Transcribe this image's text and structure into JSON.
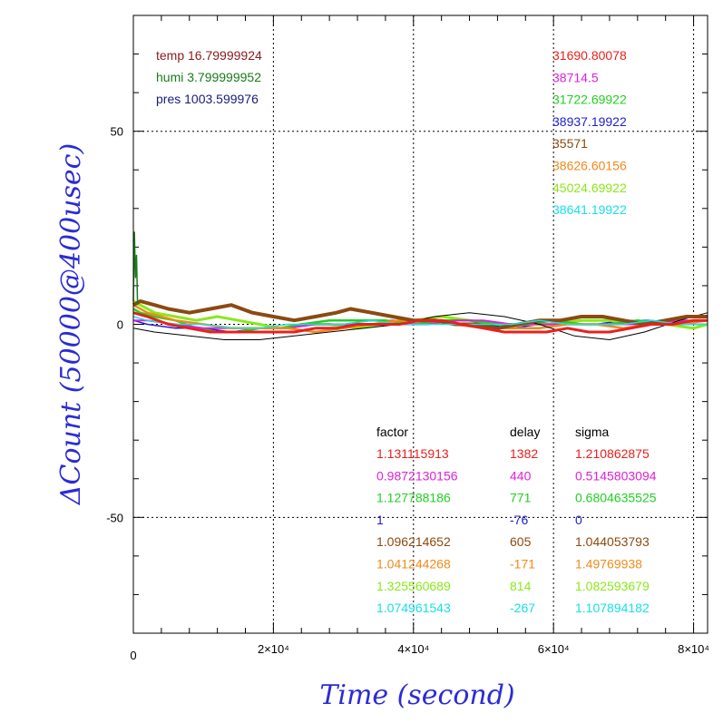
{
  "chart_data": {
    "type": "line",
    "xlabel": "Time (second)",
    "ylabel": "ΔCount (50000@400usec)",
    "xlim": [
      0,
      82000
    ],
    "ylim": [
      -80,
      80
    ],
    "x_ticks": [
      {
        "value": 0,
        "label": "0"
      },
      {
        "value": 20000,
        "label": "2×10⁴"
      },
      {
        "value": 40000,
        "label": "4×10⁴"
      },
      {
        "value": 60000,
        "label": "6×10⁴"
      },
      {
        "value": 80000,
        "label": "8×10⁴"
      }
    ],
    "y_ticks": [
      {
        "value": 50,
        "label": "50"
      },
      {
        "value": 0,
        "label": "0"
      },
      {
        "value": -50,
        "label": "-50"
      }
    ],
    "grid": true,
    "env": [
      {
        "text": "temp 16.79999924",
        "color": "#8b1a1a"
      },
      {
        "text": "humi 3.799999952",
        "color": "#1a7a1a"
      },
      {
        "text": "pres 1003.599976",
        "color": "#1a1a7a"
      }
    ],
    "legend_values": [
      {
        "text": "31690.80078",
        "color": "#e8201e"
      },
      {
        "text": "38714.5",
        "color": "#e020d8"
      },
      {
        "text": "31722.69922",
        "color": "#22d022"
      },
      {
        "text": "38937.19922",
        "color": "#2020d0"
      },
      {
        "text": "35571",
        "color": "#8b4a10"
      },
      {
        "text": "38626.60156",
        "color": "#f08a1a"
      },
      {
        "text": "45024.69922",
        "color": "#8ae81a"
      },
      {
        "text": "38641.19922",
        "color": "#18e0e8"
      }
    ],
    "fit_table": {
      "headers": [
        "factor",
        "delay",
        "sigma"
      ],
      "rows": [
        {
          "factor": "1.131115913",
          "delay": "1382",
          "sigma": "1.210862875",
          "color": "#e8201e"
        },
        {
          "factor": "0.9872130156",
          "delay": "440",
          "sigma": "0.5145803094",
          "color": "#e020d8"
        },
        {
          "factor": "1.127788186",
          "delay": "771",
          "sigma": "0.6804635525",
          "color": "#22d022"
        },
        {
          "factor": "1",
          "delay": "-76",
          "sigma": "0",
          "color": "#2020d0"
        },
        {
          "factor": "1.096214652",
          "delay": "605",
          "sigma": "1.044053793",
          "color": "#8b4a10"
        },
        {
          "factor": "1.041244268",
          "delay": "-171",
          "sigma": "1.49769938",
          "color": "#f08a1a"
        },
        {
          "factor": "1.325560689",
          "delay": "814",
          "sigma": "1.082593679",
          "color": "#8ae81a"
        },
        {
          "factor": "1.074961543",
          "delay": "-267",
          "sigma": "1.107894182",
          "color": "#18e0e8"
        }
      ]
    },
    "series": [
      {
        "color": "#2020d0",
        "width": 1.5,
        "x": [
          0,
          2000,
          6000,
          10000,
          14000,
          18000,
          22000,
          26000,
          30000,
          34000,
          38000,
          42000,
          46000,
          50000,
          54000,
          58000,
          62000,
          66000,
          70000,
          74000,
          78000,
          82000
        ],
        "y": [
          1,
          0,
          -1,
          -1,
          -2,
          -1,
          -1,
          0,
          0,
          1,
          1,
          1,
          0,
          0,
          -1,
          0,
          0,
          0,
          1,
          1,
          0,
          0
        ]
      },
      {
        "color": "#8ae81a",
        "width": 3,
        "x": [
          0,
          1000,
          3000,
          6000,
          9000,
          12000,
          15000,
          18000,
          21000,
          24000,
          28000,
          32000,
          36000,
          40000,
          44000,
          48000,
          52000,
          56000,
          60000,
          64000,
          68000,
          72000,
          76000,
          80000,
          82000
        ],
        "y": [
          6,
          5,
          3,
          2,
          1,
          2,
          1,
          0,
          -1,
          0,
          0,
          -1,
          0,
          1,
          2,
          1,
          0,
          0,
          0,
          1,
          1,
          0,
          0,
          -1,
          0
        ]
      },
      {
        "color": "#22d022",
        "width": 2.5,
        "x": [
          0,
          1000,
          3000,
          6000,
          9000,
          12000,
          15000,
          18000,
          21000,
          24000,
          28000,
          32000,
          36000,
          40000,
          44000,
          48000,
          52000,
          56000,
          60000,
          64000,
          68000,
          72000,
          76000,
          80000,
          82000
        ],
        "y": [
          4,
          3,
          2,
          1,
          -1,
          -2,
          -2,
          -1,
          -1,
          0,
          1,
          1,
          1,
          0,
          1,
          1,
          0,
          0,
          1,
          0,
          0,
          1,
          0,
          1,
          1
        ]
      },
      {
        "color": "#e020d8",
        "width": 2,
        "x": [
          0,
          2000,
          6000,
          10000,
          14000,
          18000,
          22000,
          26000,
          30000,
          34000,
          38000,
          42000,
          46000,
          50000,
          54000,
          58000,
          62000,
          66000,
          70000,
          74000,
          78000,
          82000
        ],
        "y": [
          1,
          1,
          0,
          -1,
          -1,
          -1,
          -1,
          0,
          0,
          0,
          0,
          0,
          1,
          1,
          0,
          0,
          0,
          0,
          0,
          0,
          1,
          1
        ]
      },
      {
        "color": "#f08a1a",
        "width": 2.5,
        "x": [
          0,
          2000,
          6000,
          10000,
          14000,
          18000,
          22000,
          26000,
          30000,
          34000,
          38000,
          42000,
          46000,
          50000,
          54000,
          58000,
          62000,
          66000,
          70000,
          74000,
          78000,
          82000
        ],
        "y": [
          5,
          3,
          1,
          0,
          -1,
          -1,
          -1,
          -2,
          -1,
          0,
          1,
          1,
          0,
          -1,
          -1,
          -1,
          0,
          0,
          -1,
          0,
          0,
          1
        ]
      },
      {
        "color": "#000000",
        "width": 1,
        "x": [
          0,
          3000,
          8000,
          13000,
          18000,
          23000,
          28000,
          33000,
          38000,
          43000,
          48000,
          53000,
          58000,
          63000,
          68000,
          73000,
          78000,
          82000
        ],
        "y": [
          -1,
          -2,
          -3,
          -4,
          -4,
          -3,
          -2,
          -1,
          0,
          2,
          3,
          2,
          0,
          -3,
          -4,
          -2,
          1,
          3
        ]
      },
      {
        "color": "#8b4a10",
        "width": 4,
        "x": [
          0,
          1000,
          3000,
          5000,
          8000,
          11000,
          14000,
          17000,
          20000,
          23000,
          26000,
          29000,
          31000,
          34000,
          37000,
          40000,
          43000,
          46000,
          49000,
          52000,
          55000,
          58000,
          61000,
          64000,
          67000,
          70000,
          73000,
          76000,
          79000,
          82000
        ],
        "y": [
          5,
          6,
          5,
          4,
          3,
          4,
          5,
          3,
          2,
          1,
          2,
          3,
          4,
          3,
          2,
          1,
          1,
          0,
          0,
          -1,
          0,
          1,
          1,
          2,
          2,
          1,
          0,
          1,
          2,
          2
        ]
      },
      {
        "color": "#18e0e8",
        "width": 1.5,
        "x": [
          0,
          2000,
          6000,
          10000,
          14000,
          18000,
          22000,
          26000,
          30000,
          34000,
          38000,
          42000,
          46000,
          50000,
          54000,
          58000,
          62000,
          66000,
          70000,
          74000,
          78000,
          82000
        ],
        "y": [
          2,
          1,
          0,
          0,
          -1,
          -1,
          0,
          0,
          0,
          1,
          0,
          0,
          0,
          0,
          0,
          1,
          0,
          0,
          0,
          1,
          0,
          0
        ]
      },
      {
        "color": "#e8201e",
        "width": 3,
        "x": [
          0,
          2000,
          5000,
          8000,
          11000,
          14000,
          17000,
          20000,
          23000,
          26000,
          29000,
          32000,
          35000,
          38000,
          41000,
          44000,
          47000,
          50000,
          53000,
          56000,
          59000,
          62000,
          65000,
          68000,
          71000,
          74000,
          77000,
          80000,
          82000
        ],
        "y": [
          3,
          2,
          0,
          -1,
          -2,
          -2,
          -2,
          -2,
          -2,
          -1,
          -1,
          0,
          0,
          0,
          1,
          1,
          0,
          -1,
          -2,
          -2,
          -2,
          -1,
          -2,
          -2,
          -1,
          0,
          0,
          1,
          1
        ]
      }
    ]
  }
}
